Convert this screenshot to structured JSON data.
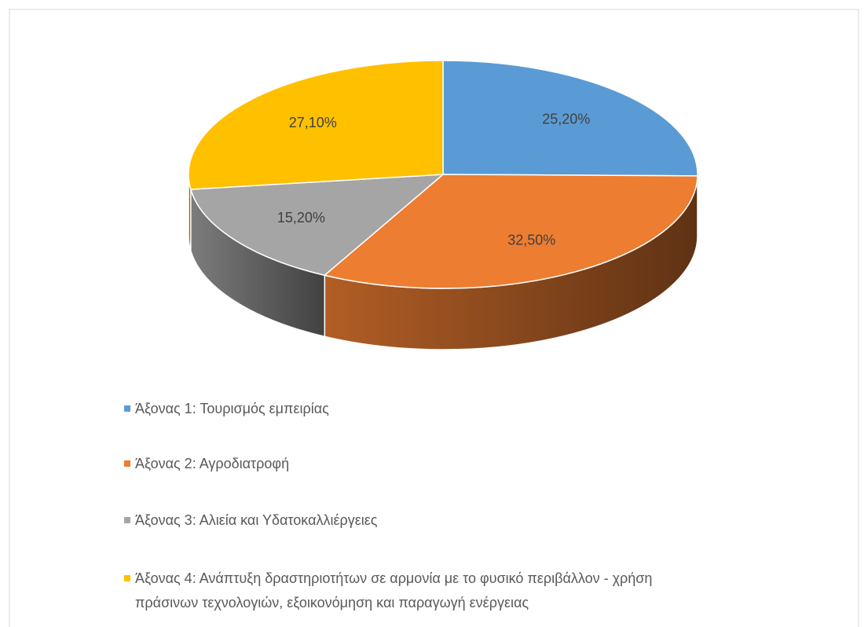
{
  "chart_data": {
    "type": "pie",
    "categories": [
      "Άξονας 1: Τουρισμός εμπειρίας",
      "Άξονας 2: Αγροδιατροφή",
      "Άξονας 3: Αλιεία και Υδατοκαλλιέργειες",
      "Άξονας 4: Ανάπτυξη δραστηριοτήτων σε αρμονία με το φυσικό περιβάλλον - χρήση πράσινων τεχνολογιών, εξοικονόμηση και παραγωγή ενέργειας"
    ],
    "values": [
      25.2,
      32.5,
      15.2,
      27.1
    ],
    "value_labels": [
      "25,20%",
      "32,50%",
      "15,20%",
      "27,10%"
    ],
    "colors": [
      "#5b9bd5",
      "#ed7d31",
      "#a5a5a5",
      "#ffc000"
    ]
  }
}
